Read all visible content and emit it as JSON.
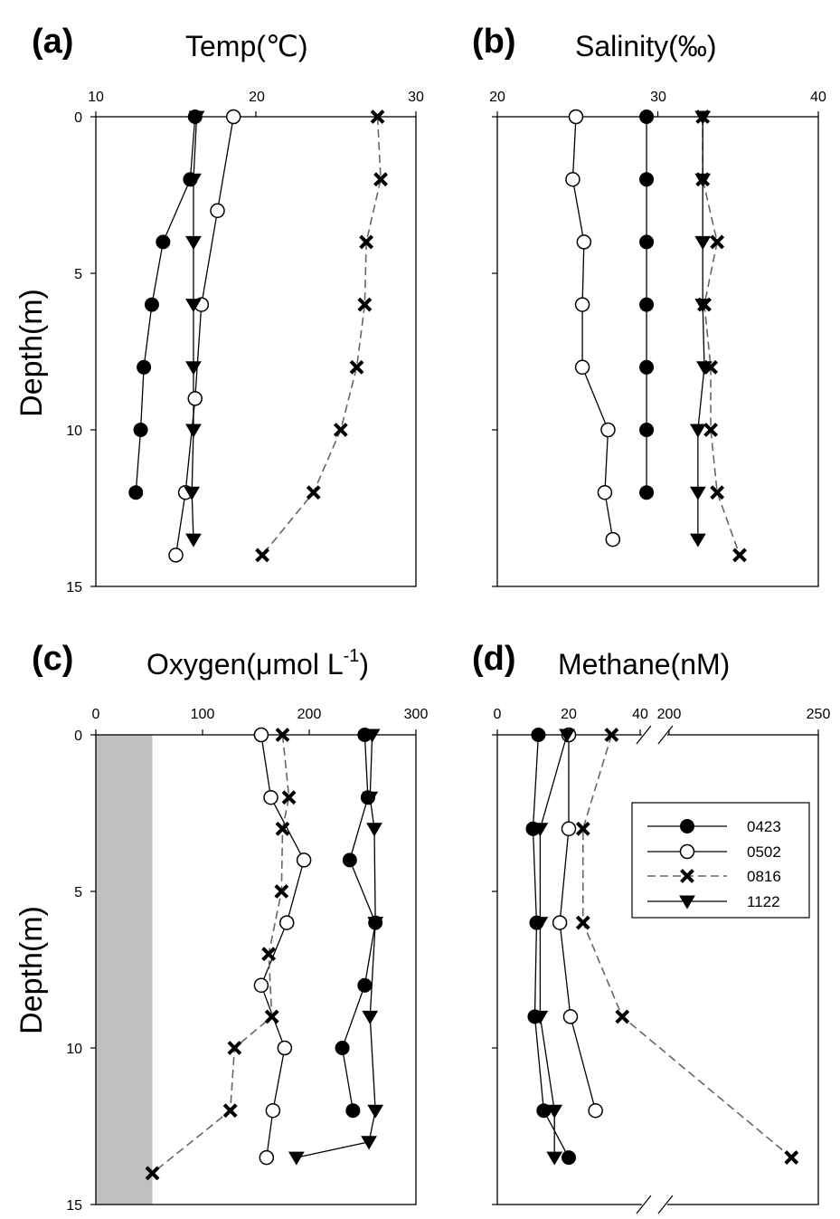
{
  "legend": [
    {
      "name": "0423",
      "marker": "filled-circle",
      "dashed": false
    },
    {
      "name": "0502",
      "marker": "open-circle",
      "dashed": false
    },
    {
      "name": "0816",
      "marker": "cross",
      "dashed": true
    },
    {
      "name": "1122",
      "marker": "filled-triangle-down",
      "dashed": false
    }
  ],
  "colors": {
    "line": "#000000",
    "dashed_line": "#666666",
    "anoxic_shade": "#c0c0c0"
  },
  "ylabel": "Depth(m)",
  "chart_data": [
    {
      "type": "line",
      "panel_label": "(a)",
      "title_main": "Temp(℃)",
      "xlim": [
        10,
        30
      ],
      "xticks": [
        "10",
        "20",
        "30"
      ],
      "ylim": [
        0,
        15
      ],
      "yticks": [
        "0",
        "5",
        "10",
        "15"
      ],
      "ylabel": "Depth(m)",
      "series": [
        {
          "name": "0423",
          "points": [
            [
              16.2,
              0
            ],
            [
              15.9,
              2
            ],
            [
              14.2,
              4
            ],
            [
              13.5,
              6
            ],
            [
              13.0,
              8
            ],
            [
              12.8,
              10
            ],
            [
              12.5,
              12
            ]
          ]
        },
        {
          "name": "0502",
          "points": [
            [
              18.6,
              0
            ],
            [
              17.6,
              3
            ],
            [
              16.6,
              6
            ],
            [
              16.2,
              9
            ],
            [
              15.6,
              12
            ],
            [
              15.0,
              14
            ]
          ]
        },
        {
          "name": "0816",
          "points": [
            [
              27.6,
              0
            ],
            [
              27.8,
              2
            ],
            [
              26.9,
              4
            ],
            [
              26.8,
              6
            ],
            [
              26.3,
              8
            ],
            [
              25.3,
              10
            ],
            [
              23.6,
              12
            ],
            [
              20.4,
              14
            ]
          ]
        },
        {
          "name": "1122",
          "points": [
            [
              16.3,
              0
            ],
            [
              16.1,
              2
            ],
            [
              16.1,
              4
            ],
            [
              16.1,
              6
            ],
            [
              16.1,
              8
            ],
            [
              16.1,
              10
            ],
            [
              16.0,
              12
            ],
            [
              16.1,
              13.5
            ]
          ]
        }
      ]
    },
    {
      "type": "line",
      "panel_label": "(b)",
      "title_main": "Salinity(‰)",
      "xlim": [
        20,
        40
      ],
      "xticks": [
        "20",
        "30",
        "40"
      ],
      "ylim": [
        0,
        15
      ],
      "yticks": [
        "0",
        "5",
        "10",
        "15"
      ],
      "series": [
        {
          "name": "0423",
          "points": [
            [
              29.3,
              0
            ],
            [
              29.3,
              2
            ],
            [
              29.3,
              4
            ],
            [
              29.3,
              6
            ],
            [
              29.3,
              8
            ],
            [
              29.3,
              10
            ],
            [
              29.3,
              12
            ]
          ]
        },
        {
          "name": "0502",
          "points": [
            [
              24.9,
              0
            ],
            [
              24.7,
              2
            ],
            [
              25.4,
              4
            ],
            [
              25.3,
              6
            ],
            [
              25.3,
              8
            ],
            [
              26.9,
              10
            ],
            [
              26.7,
              12
            ],
            [
              27.2,
              13.5
            ]
          ]
        },
        {
          "name": "0816",
          "points": [
            [
              32.8,
              0
            ],
            [
              32.8,
              2
            ],
            [
              33.7,
              4
            ],
            [
              32.9,
              6
            ],
            [
              33.3,
              8
            ],
            [
              33.3,
              10
            ],
            [
              33.7,
              12
            ],
            [
              35.1,
              14
            ]
          ]
        },
        {
          "name": "1122",
          "points": [
            [
              32.8,
              0
            ],
            [
              32.8,
              2
            ],
            [
              32.8,
              4
            ],
            [
              32.8,
              6
            ],
            [
              32.9,
              8
            ],
            [
              32.5,
              10
            ],
            [
              32.5,
              12
            ],
            [
              32.5,
              13.5
            ]
          ]
        }
      ]
    },
    {
      "type": "line",
      "panel_label": "(c)",
      "title_main": "Oxygen(μmol L",
      "title_sup": "-1",
      "title_end": ")",
      "xlim": [
        0,
        300
      ],
      "xticks": [
        "0",
        "100",
        "200",
        "300"
      ],
      "ylim": [
        0,
        15
      ],
      "yticks": [
        "0",
        "5",
        "10",
        "15"
      ],
      "ylabel": "Depth(m)",
      "anoxic_band_oxygen": [
        0,
        53
      ],
      "series": [
        {
          "name": "0423",
          "points": [
            [
              252,
              0
            ],
            [
              255,
              2
            ],
            [
              238,
              4
            ],
            [
              262,
              6
            ],
            [
              252,
              8
            ],
            [
              231,
              10
            ],
            [
              241,
              12
            ]
          ]
        },
        {
          "name": "0502",
          "points": [
            [
              155,
              0
            ],
            [
              164,
              2
            ],
            [
              195,
              4
            ],
            [
              179,
              6
            ],
            [
              155,
              8
            ],
            [
              177,
              10
            ],
            [
              166,
              12
            ],
            [
              160,
              13.5
            ]
          ]
        },
        {
          "name": "0816",
          "points": [
            [
              175,
              0
            ],
            [
              181,
              2
            ],
            [
              175,
              3
            ],
            [
              174,
              5
            ],
            [
              162,
              7
            ],
            [
              165,
              9
            ],
            [
              130,
              10
            ],
            [
              126,
              12
            ],
            [
              53,
              14
            ]
          ]
        },
        {
          "name": "1122",
          "points": [
            [
              259,
              0
            ],
            [
              257,
              2
            ],
            [
              261,
              3
            ],
            [
              262,
              6
            ],
            [
              257,
              9
            ],
            [
              262,
              12
            ],
            [
              256,
              13
            ],
            [
              188,
              13.5
            ]
          ]
        }
      ]
    },
    {
      "type": "line",
      "panel_label": "(d)",
      "title_main": "Methane(nM)",
      "xlim": [
        0,
        250
      ],
      "x_break": {
        "low_range": [
          0,
          40
        ],
        "high_range": [
          200,
          250
        ]
      },
      "xticks": [
        "0",
        "20",
        "40",
        "200",
        "250"
      ],
      "ylim": [
        0,
        15
      ],
      "yticks": [
        "0",
        "5",
        "10",
        "15"
      ],
      "series": [
        {
          "name": "0423",
          "points": [
            [
              11.5,
              0
            ],
            [
              10,
              3
            ],
            [
              11,
              6
            ],
            [
              10.5,
              9
            ],
            [
              13,
              12
            ],
            [
              20,
              13.5
            ]
          ]
        },
        {
          "name": "0502",
          "points": [
            [
              20,
              0
            ],
            [
              20,
              3
            ],
            [
              17.5,
              6
            ],
            [
              20.5,
              9
            ],
            [
              27.5,
              12
            ]
          ]
        },
        {
          "name": "0816",
          "points": [
            [
              32,
              0
            ],
            [
              24,
              3
            ],
            [
              24,
              6
            ],
            [
              35,
              9
            ],
            [
              241,
              13.5
            ]
          ]
        },
        {
          "name": "1122",
          "points": [
            [
              19.5,
              0
            ],
            [
              12,
              3
            ],
            [
              12,
              6
            ],
            [
              12,
              9
            ],
            [
              16,
              12
            ],
            [
              16,
              13.5
            ]
          ]
        }
      ]
    }
  ]
}
